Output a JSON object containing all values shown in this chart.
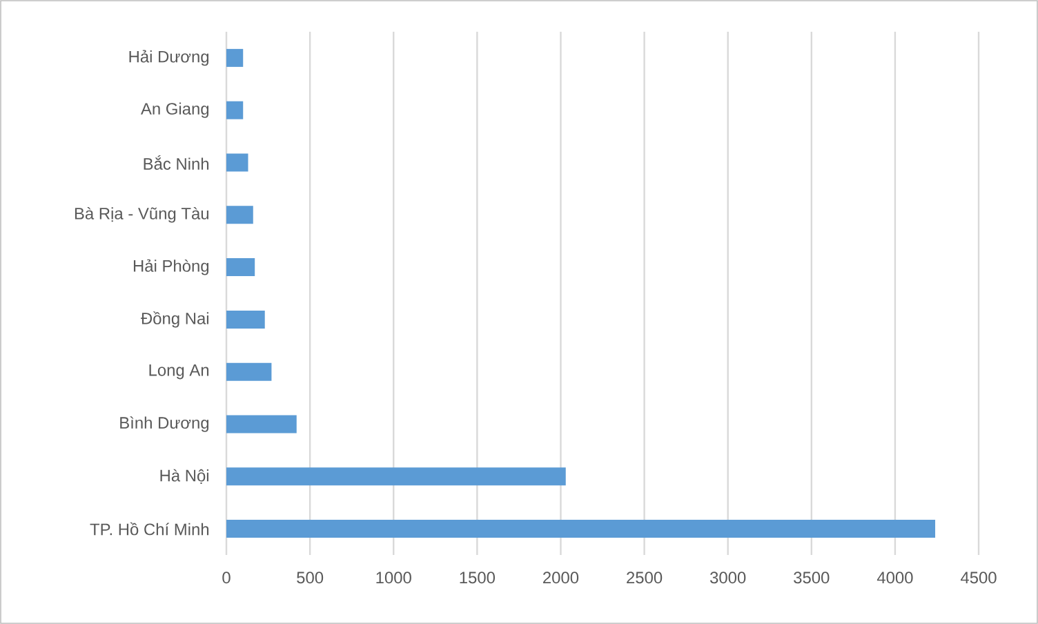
{
  "chart_data": {
    "type": "bar",
    "orientation": "horizontal",
    "categories": [
      "Hải Dương",
      "An Giang",
      "Bắc Ninh",
      "Bà Rịa - Vũng Tàu",
      "Hải Phòng",
      "Đồng Nai",
      "Long An",
      "Bình Dương",
      "Hà Nội",
      "TP. Hồ Chí Minh"
    ],
    "values": [
      100,
      100,
      130,
      160,
      170,
      230,
      270,
      420,
      2030,
      4240
    ],
    "color": "#5b9bd5",
    "xlim": [
      0,
      4500
    ],
    "xticks": [
      0,
      500,
      1000,
      1500,
      2000,
      2500,
      3000,
      3500,
      4000,
      4500
    ],
    "grid": "x"
  }
}
